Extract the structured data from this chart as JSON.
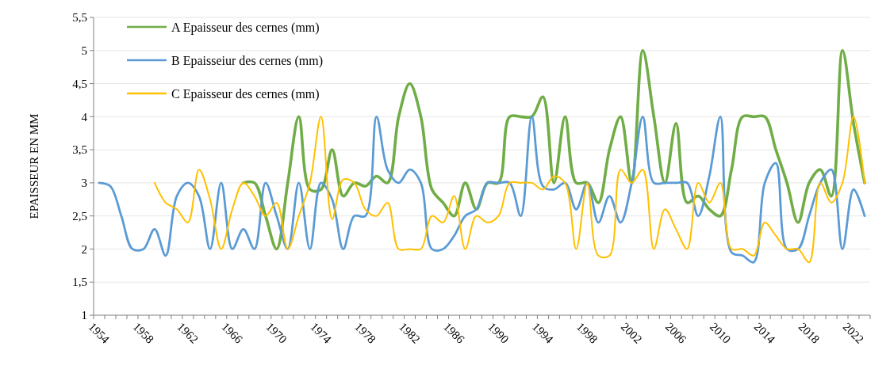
{
  "chart_data": {
    "type": "line",
    "ylabel": "EPAISSEUR  EN MM",
    "categories": [
      "1954",
      null,
      null,
      null,
      "1958",
      null,
      null,
      null,
      "1962",
      null,
      null,
      null,
      "1966",
      null,
      null,
      null,
      "1970",
      null,
      null,
      null,
      "1974",
      null,
      null,
      null,
      "1978",
      null,
      null,
      null,
      "1982",
      null,
      null,
      null,
      "1986",
      null,
      null,
      null,
      "1990",
      null,
      null,
      null,
      "1994",
      null,
      null,
      null,
      "1998",
      null,
      null,
      null,
      "2002",
      null,
      null,
      null,
      "2006",
      null,
      null,
      null,
      "2010",
      null,
      null,
      null,
      "2014",
      null,
      null,
      null,
      "2018",
      null,
      null,
      null,
      "2022",
      null
    ],
    "series": [
      {
        "name": "A Epaisseur des cernes (mm)",
        "color": "#70ad47",
        "values": [
          null,
          null,
          null,
          null,
          null,
          null,
          null,
          null,
          null,
          null,
          null,
          null,
          null,
          3.0,
          3.0,
          2.5,
          2.0,
          3.0,
          4.0,
          2.9,
          2.9,
          3.5,
          2.8,
          3.0,
          2.95,
          3.1,
          3.0,
          4.0,
          4.5,
          4.0,
          2.9,
          2.7,
          2.5,
          3.0,
          2.6,
          3.0,
          3.0,
          4.0,
          4.0,
          4.0,
          4.3,
          3.0,
          4.0,
          3.0,
          3.0,
          2.7,
          3.5,
          4.0,
          3.0,
          5.0,
          4.0,
          3.0,
          3.9,
          2.7,
          2.8,
          2.6,
          2.5,
          3.2,
          4.0,
          4.0,
          4.0,
          3.5,
          3.0,
          2.4,
          3.0,
          3.2,
          2.8,
          5.0,
          3.9,
          3.0
        ]
      },
      {
        "name": "B Epaisseiur des cernes (mm)",
        "color": "#5b9bd5",
        "values": [
          3.0,
          2.95,
          2.5,
          2.0,
          2.0,
          2.3,
          1.9,
          2.8,
          3.0,
          2.8,
          2.0,
          3.0,
          2.0,
          2.3,
          2.0,
          3.0,
          2.5,
          2.0,
          3.0,
          2.0,
          3.0,
          2.75,
          2.0,
          2.5,
          2.5,
          4.0,
          3.2,
          3.0,
          3.2,
          3.0,
          2.0,
          2.0,
          2.2,
          2.5,
          2.6,
          3.0,
          3.0,
          3.0,
          2.5,
          4.0,
          2.95,
          2.9,
          3.0,
          2.6,
          3.0,
          2.4,
          2.8,
          2.4,
          3.0,
          4.0,
          3.0,
          3.0,
          3.0,
          3.0,
          2.5,
          3.1,
          4.0,
          1.95,
          1.9,
          1.8,
          3.0,
          3.3,
          2.0,
          2.0,
          2.5,
          3.0,
          3.2,
          2.0,
          2.9,
          2.5
        ]
      },
      {
        "name": "C Epaisseur des cernes (mm)",
        "color": "#ffc000",
        "values": [
          null,
          null,
          null,
          null,
          null,
          3.0,
          2.7,
          2.6,
          2.4,
          3.2,
          2.75,
          2.0,
          2.6,
          3.0,
          2.8,
          2.5,
          2.7,
          2.0,
          2.5,
          3.0,
          4.0,
          2.45,
          3.05,
          3.0,
          2.6,
          2.5,
          2.7,
          2.0,
          2.0,
          2.0,
          2.5,
          2.4,
          2.8,
          2.0,
          2.5,
          2.4,
          2.5,
          3.0,
          3.0,
          3.0,
          2.9,
          3.1,
          3.0,
          2.0,
          3.0,
          1.9,
          1.9,
          3.2,
          3.0,
          3.2,
          2.0,
          2.6,
          2.3,
          2.0,
          3.0,
          2.7,
          3.0,
          2.0,
          2.0,
          1.9,
          2.4,
          2.2,
          2.0,
          2.0,
          1.8,
          3.0,
          2.7,
          3.0,
          4.0,
          3.0
        ]
      }
    ],
    "ylim": [
      1,
      5.5
    ],
    "yticks": [
      1,
      {
        "value": 1.5,
        "label": "1,5"
      },
      2,
      {
        "value": 2.5,
        "label": "2,5"
      },
      3,
      {
        "value": 3.5,
        "label": "3,5"
      },
      4,
      {
        "value": 4.5,
        "label": "4,5"
      },
      5,
      {
        "value": 5.5,
        "label": "5,5"
      }
    ],
    "grid": "y",
    "legend": "top left",
    "line_style": "solid",
    "marker": "none"
  }
}
